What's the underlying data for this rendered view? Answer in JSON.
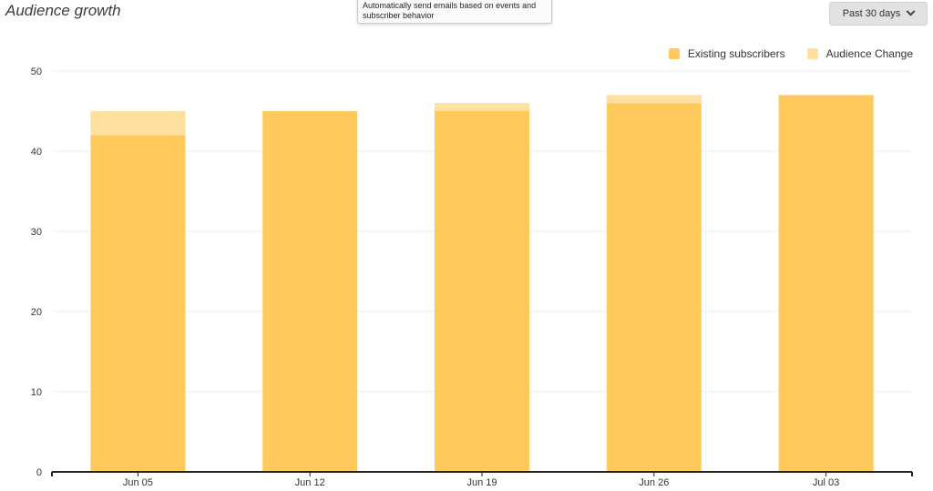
{
  "header": {
    "title": "Audience growth",
    "range_label": "Past 30 days"
  },
  "tooltip": {
    "text": "Automatically send emails based on events and subscriber behavior"
  },
  "colors": {
    "existing": "#FFC95C",
    "change": "#FFE09E"
  },
  "chart_data": {
    "type": "bar",
    "stacked": true,
    "categories": [
      "Jun 05",
      "Jun 12",
      "Jun 19",
      "Jun 26",
      "Jul 03"
    ],
    "series": [
      {
        "name": "Existing subscribers",
        "values": [
          42,
          45,
          45,
          46,
          47
        ]
      },
      {
        "name": "Audience Change",
        "values": [
          3,
          0,
          1,
          1,
          0
        ]
      }
    ],
    "y_ticks": [
      "0",
      "10",
      "20",
      "30",
      "40",
      "50"
    ],
    "ylim": [
      0,
      50
    ],
    "grid": true,
    "legend_position": "top-right"
  }
}
